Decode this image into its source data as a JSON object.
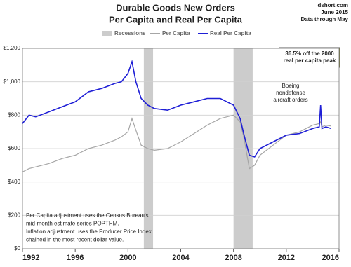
{
  "chart_data": {
    "type": "line",
    "title": "Durable Goods New Orders",
    "subtitle": "Per Capita and Real Per Capita",
    "source": [
      "dshort.com",
      "June 2015",
      "Data through May"
    ],
    "recessions": {
      "name": "Recessions",
      "color": "#cccccc",
      "spans": [
        [
          2001.2,
          2001.9
        ],
        [
          2008.0,
          2009.45
        ]
      ]
    },
    "x": [
      1992,
      1992.5,
      1993,
      1994,
      1995,
      1996,
      1997,
      1998,
      1999,
      1999.5,
      2000,
      2000.3,
      2000.6,
      2001,
      2001.5,
      2002,
      2003,
      2004,
      2005,
      2006,
      2007,
      2007.5,
      2008,
      2008.5,
      2008.8,
      2009.2,
      2009.6,
      2010,
      2011,
      2012,
      2013,
      2014,
      2014.5,
      2014.6,
      2014.7,
      2015,
      2015.4
    ],
    "series": [
      {
        "name": "Per Capita",
        "color": "#a6a6a6",
        "values": [
          460,
          480,
          490,
          510,
          540,
          560,
          600,
          620,
          650,
          670,
          700,
          780,
          710,
          620,
          600,
          590,
          600,
          640,
          690,
          740,
          780,
          790,
          800,
          760,
          660,
          480,
          500,
          560,
          620,
          680,
          700,
          740,
          750,
          760,
          730,
          740,
          735
        ]
      },
      {
        "name": "Real Per Capita",
        "color": "#1f1fd6",
        "values": [
          750,
          800,
          790,
          820,
          850,
          880,
          940,
          960,
          990,
          1000,
          1050,
          1120,
          1000,
          900,
          860,
          840,
          830,
          860,
          880,
          900,
          900,
          880,
          860,
          780,
          680,
          560,
          550,
          600,
          640,
          680,
          690,
          720,
          730,
          860,
          720,
          730,
          720
        ]
      }
    ],
    "xlim": [
      1992,
      2016
    ],
    "xticks": [
      1992,
      1996,
      2000,
      2004,
      2008,
      2012,
      2016
    ],
    "ylim": [
      0,
      1200
    ],
    "yticks": [
      {
        "value": 0,
        "label": "$0"
      },
      {
        "value": 200,
        "label": "$200"
      },
      {
        "value": 400,
        "label": "$400"
      },
      {
        "value": 600,
        "label": "$600"
      },
      {
        "value": 800,
        "label": "$800"
      },
      {
        "value": 1000,
        "label": "$1,000"
      },
      {
        "value": 1200,
        "label": "$1,200"
      }
    ],
    "grid": true,
    "annotations": [
      {
        "lines": [
          "36.5% off the 2000",
          "real per capita peak"
        ]
      },
      {
        "lines": [
          "Boeing",
          "nondefense",
          "aircraft orders"
        ]
      }
    ],
    "note": [
      "Per Capita adjustment uses the Census Bureau's",
      "mid-month estimate series POPTHM.",
      "Inflation adjustment uses the Producer Price Index",
      "chained in the most recent dollar value."
    ]
  }
}
